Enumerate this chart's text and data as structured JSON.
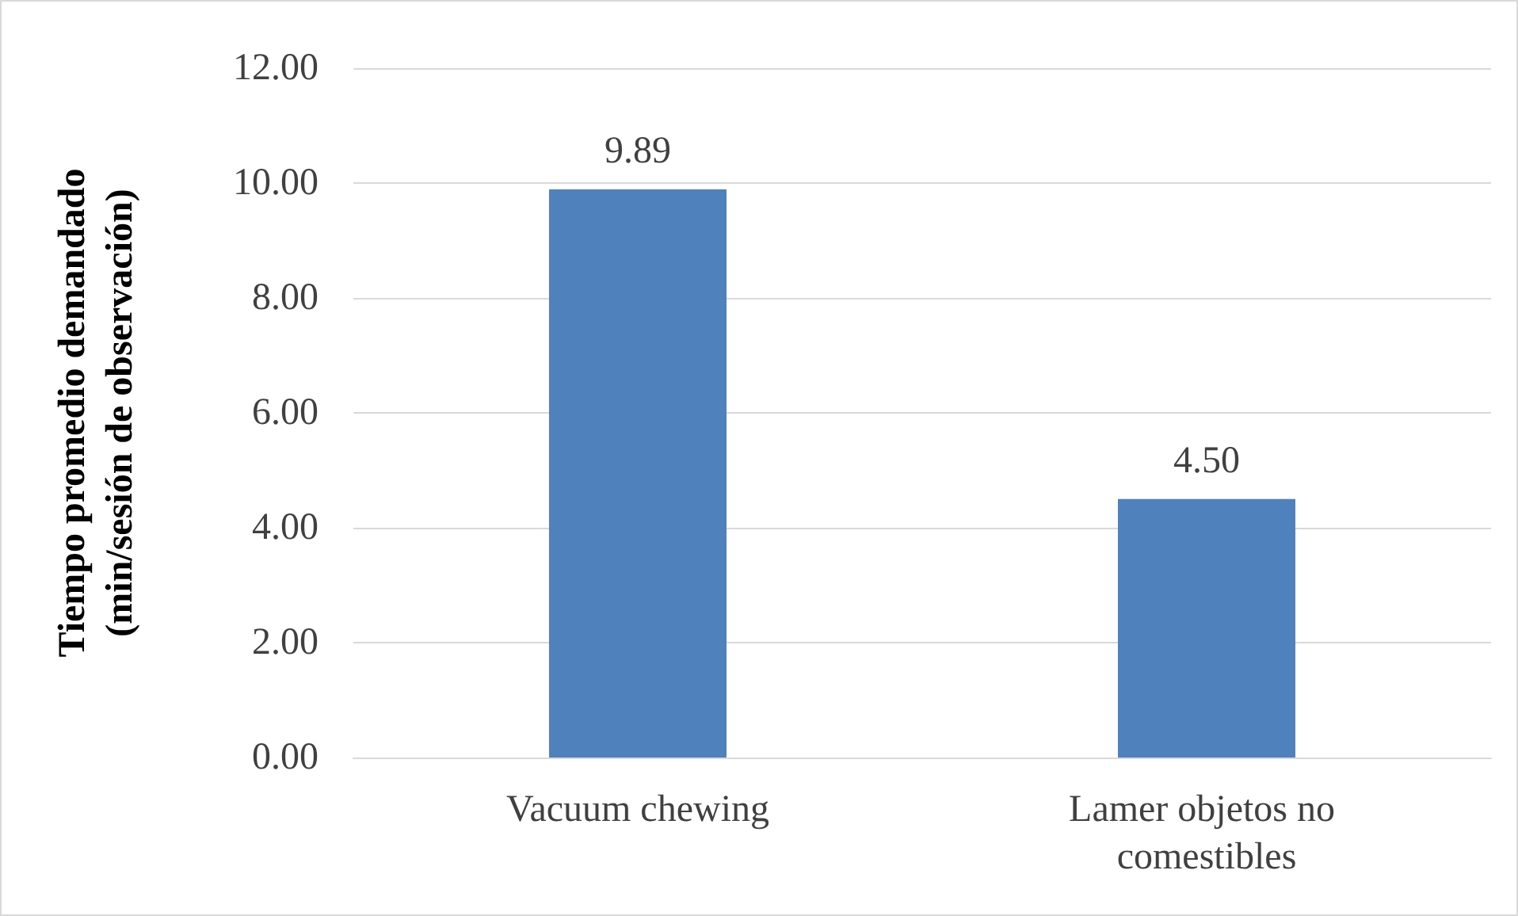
{
  "chart_data": {
    "type": "bar",
    "ylabel": "Tiempo promedio demandado\n(min/sesión de observación)",
    "categories": [
      "Vacuum chewing",
      "Lamer objetos no comestibles"
    ],
    "values": [
      9.89,
      4.5
    ],
    "value_labels": [
      "9.89",
      "4.50"
    ],
    "color": "#4f81bd",
    "ylim": [
      0,
      12
    ],
    "yticks": [
      {
        "value": 0,
        "label": "0.00"
      },
      {
        "value": 2,
        "label": "2.00"
      },
      {
        "value": 4,
        "label": "4.00"
      },
      {
        "value": 6,
        "label": "6.00"
      },
      {
        "value": 8,
        "label": "8.00"
      },
      {
        "value": 10,
        "label": "10.00"
      },
      {
        "value": 12,
        "label": "12.00"
      }
    ],
    "grid": "y"
  }
}
